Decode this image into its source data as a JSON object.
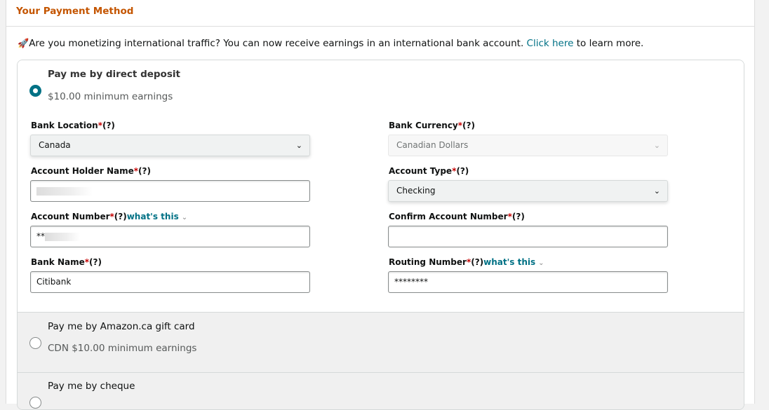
{
  "header": {
    "title": "Your Payment Method"
  },
  "notice": {
    "text_before": "Are you monetizing international traffic? You can now receive earnings in an international bank account. ",
    "link": "Click here",
    "text_after": " to learn more.",
    "icon": "rocket-icon"
  },
  "options": [
    {
      "title": "Pay me by direct deposit",
      "subtitle": "$10.00 minimum earnings",
      "selected": true
    },
    {
      "title": "Pay me by Amazon.ca gift card",
      "subtitle": "CDN $10.00 minimum earnings",
      "selected": false
    },
    {
      "title": "Pay me by cheque",
      "selected": false
    }
  ],
  "form": {
    "req": "*",
    "help": "(?)",
    "whats_this": "what's this",
    "bank_location": {
      "label": "Bank Location",
      "value": "Canada"
    },
    "bank_currency": {
      "label": "Bank Currency",
      "value": "Canadian Dollars"
    },
    "holder_name": {
      "label": "Account Holder Name",
      "value": ""
    },
    "account_type": {
      "label": "Account Type",
      "value": "Checking"
    },
    "account_number": {
      "label": "Account Number",
      "value": "**"
    },
    "confirm_number": {
      "label": "Confirm Account Number",
      "value": ""
    },
    "bank_name": {
      "label": "Bank Name",
      "value": "Citibank"
    },
    "routing_number": {
      "label": "Routing Number",
      "value": "********"
    }
  },
  "colors": {
    "accent": "#007185",
    "header": "#c45500",
    "required": "#c40000"
  }
}
